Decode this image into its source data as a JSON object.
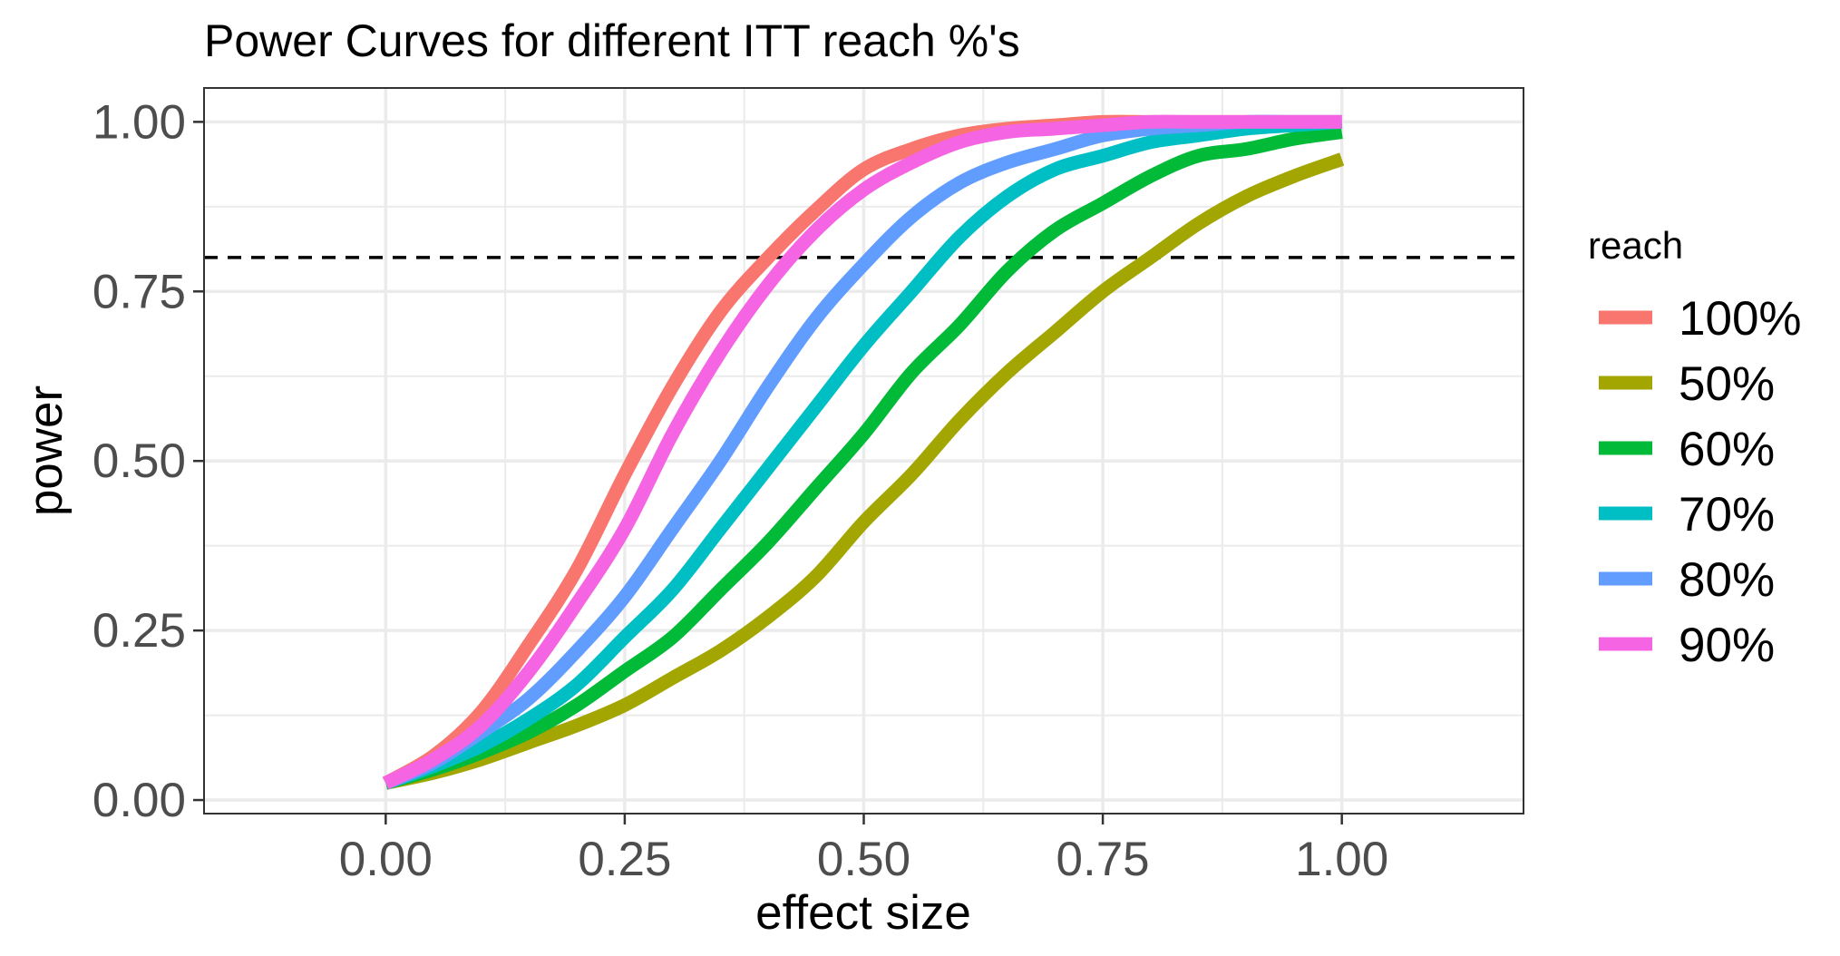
{
  "chart_data": {
    "type": "line",
    "title": "Power Curves for different ITT reach %'s",
    "xlabel": "effect size",
    "ylabel": "power",
    "xlim": [
      -0.19,
      1.19
    ],
    "ylim": [
      -0.02,
      1.05
    ],
    "x_ticks": [
      0,
      0.25,
      0.5,
      0.75,
      1
    ],
    "x_tick_labels": [
      "0.00",
      "0.25",
      "0.50",
      "0.75",
      "1.00"
    ],
    "y_ticks": [
      0,
      0.25,
      0.5,
      0.75,
      1
    ],
    "y_tick_labels": [
      "0.00",
      "0.25",
      "0.50",
      "0.75",
      "1.00"
    ],
    "grid": true,
    "reference_line": {
      "y": 0.8,
      "style": "dashed",
      "color": "#000000"
    },
    "legend": {
      "title": "reach",
      "position": "right"
    },
    "x": [
      0,
      0.05,
      0.1,
      0.15,
      0.2,
      0.25,
      0.3,
      0.35,
      0.4,
      0.45,
      0.5,
      0.55,
      0.6,
      0.65,
      0.7,
      0.75,
      0.8,
      0.85,
      0.9,
      0.95,
      1
    ],
    "series": [
      {
        "name": "100%",
        "color": "#F8766D",
        "values": [
          0.025,
          0.065,
          0.13,
          0.23,
          0.34,
          0.48,
          0.61,
          0.72,
          0.8,
          0.87,
          0.93,
          0.96,
          0.98,
          0.99,
          0.995,
          1,
          1,
          1,
          1,
          1,
          1
        ]
      },
      {
        "name": "50%",
        "color": "#A3A500",
        "values": [
          0.025,
          0.04,
          0.06,
          0.085,
          0.11,
          0.14,
          0.18,
          0.22,
          0.27,
          0.33,
          0.41,
          0.48,
          0.56,
          0.63,
          0.69,
          0.75,
          0.8,
          0.85,
          0.89,
          0.92,
          0.945
        ]
      },
      {
        "name": "60%",
        "color": "#00BA38",
        "values": [
          0.025,
          0.045,
          0.07,
          0.1,
          0.14,
          0.19,
          0.24,
          0.31,
          0.38,
          0.46,
          0.54,
          0.63,
          0.7,
          0.78,
          0.84,
          0.88,
          0.92,
          0.95,
          0.96,
          0.975,
          0.985
        ]
      },
      {
        "name": "70%",
        "color": "#00BFC4",
        "values": [
          0.025,
          0.05,
          0.08,
          0.12,
          0.17,
          0.24,
          0.31,
          0.4,
          0.49,
          0.58,
          0.67,
          0.75,
          0.83,
          0.89,
          0.93,
          0.95,
          0.97,
          0.98,
          0.99,
          0.995,
          1
        ]
      },
      {
        "name": "80%",
        "color": "#619CFF",
        "values": [
          0.025,
          0.055,
          0.1,
          0.15,
          0.22,
          0.3,
          0.4,
          0.5,
          0.61,
          0.71,
          0.79,
          0.86,
          0.91,
          0.94,
          0.96,
          0.98,
          0.99,
          0.995,
          1,
          1,
          1
        ]
      },
      {
        "name": "90%",
        "color": "#F564E3",
        "values": [
          0.025,
          0.06,
          0.11,
          0.19,
          0.29,
          0.4,
          0.54,
          0.66,
          0.76,
          0.84,
          0.9,
          0.94,
          0.97,
          0.985,
          0.99,
          0.995,
          1,
          1,
          1,
          1,
          1
        ]
      }
    ]
  }
}
